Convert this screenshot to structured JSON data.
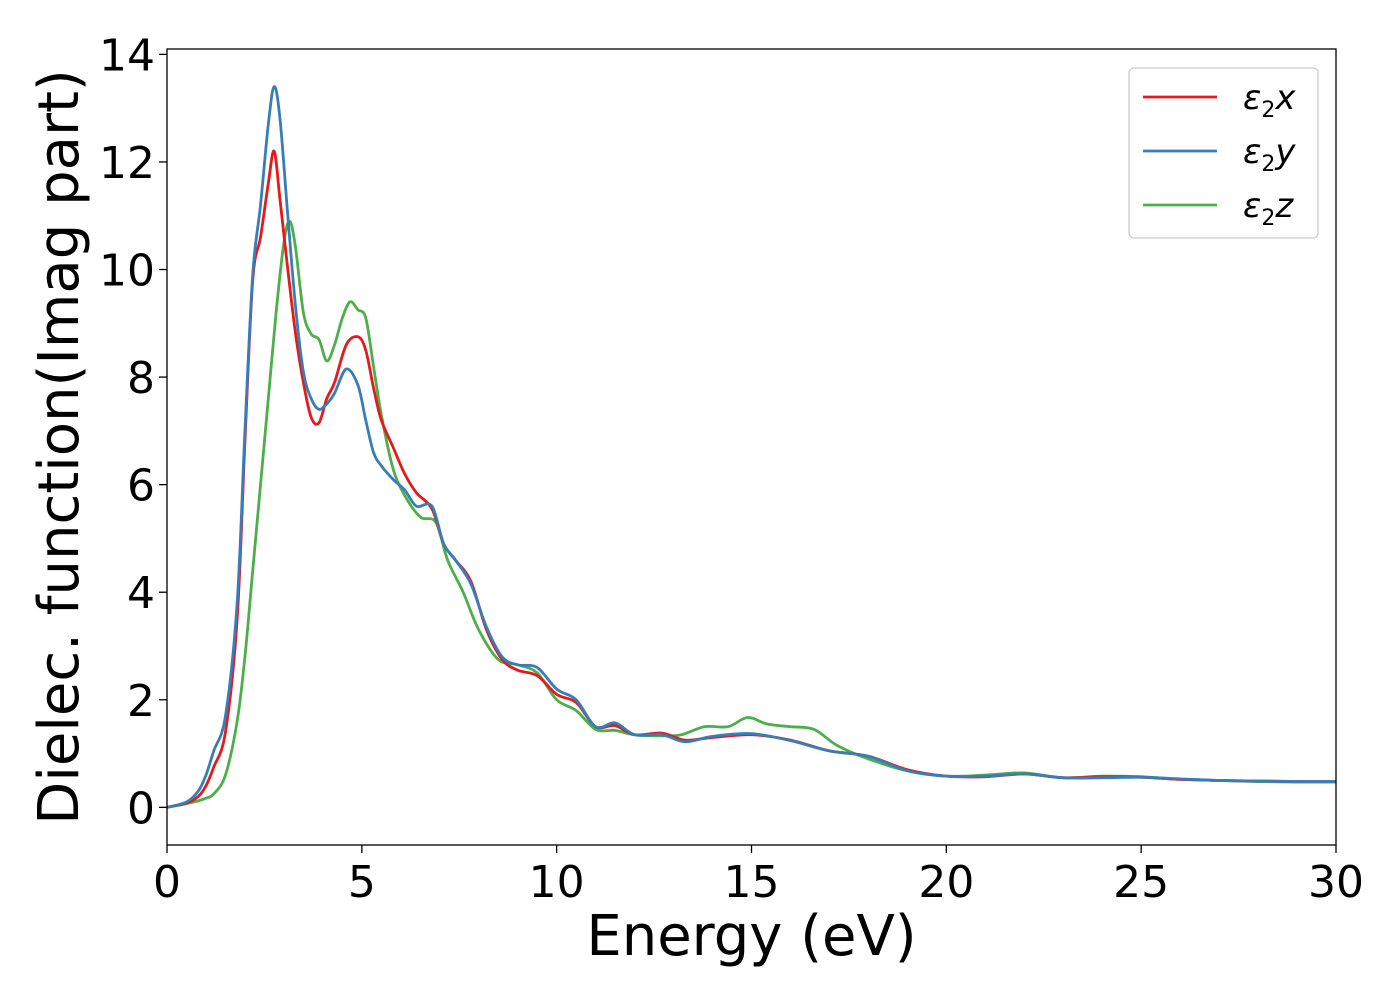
{
  "chart_data": {
    "type": "line",
    "title": "",
    "xlabel": "Energy (eV)",
    "ylabel": "Dielec. function(Imag part)",
    "xlim": [
      0,
      30
    ],
    "ylim": [
      -0.7,
      14.1
    ],
    "xticks": [
      0,
      5,
      10,
      15,
      20,
      25,
      30
    ],
    "yticks": [
      0,
      2,
      4,
      6,
      8,
      10,
      12,
      14
    ],
    "grid": false,
    "legend_position": "top-right",
    "series": [
      {
        "name": "ε2x",
        "legend": {
          "base": "ε",
          "sub": "2",
          "var": "x"
        },
        "color": "#e41a1c",
        "x": [
          0,
          0.5,
          0.8,
          1.0,
          1.2,
          1.5,
          1.8,
          2.0,
          2.2,
          2.4,
          2.6,
          2.75,
          2.9,
          3.1,
          3.3,
          3.5,
          3.7,
          3.9,
          4.1,
          4.3,
          4.6,
          4.9,
          5.1,
          5.3,
          5.5,
          5.8,
          6.1,
          6.4,
          6.8,
          7.1,
          7.4,
          7.8,
          8.2,
          8.6,
          9.0,
          9.5,
          10.0,
          10.5,
          11.0,
          11.5,
          12.0,
          12.7,
          13.3,
          14.0,
          15.0,
          16.0,
          17.0,
          18.0,
          19.0,
          20.0,
          21.0,
          22.0,
          23.0,
          24.0,
          25.0,
          26.0,
          27.0,
          28.0,
          29.0,
          30.0
        ],
        "y": [
          0.0,
          0.08,
          0.2,
          0.4,
          0.75,
          1.4,
          3.5,
          6.8,
          9.8,
          10.6,
          11.6,
          12.2,
          11.3,
          10.0,
          8.8,
          7.9,
          7.25,
          7.15,
          7.6,
          7.9,
          8.6,
          8.75,
          8.5,
          7.8,
          7.2,
          6.7,
          6.2,
          5.85,
          5.55,
          4.9,
          4.6,
          4.2,
          3.3,
          2.75,
          2.55,
          2.45,
          2.1,
          1.95,
          1.5,
          1.52,
          1.35,
          1.38,
          1.25,
          1.3,
          1.35,
          1.25,
          1.05,
          0.95,
          0.7,
          0.58,
          0.57,
          0.62,
          0.55,
          0.57,
          0.56,
          0.52,
          0.5,
          0.49,
          0.48,
          0.48
        ]
      },
      {
        "name": "ε2y",
        "legend": {
          "base": "ε",
          "sub": "2",
          "var": "y"
        },
        "color": "#377eb8",
        "x": [
          0,
          0.5,
          0.8,
          1.0,
          1.2,
          1.5,
          1.8,
          2.0,
          2.2,
          2.4,
          2.6,
          2.75,
          2.9,
          3.1,
          3.3,
          3.5,
          3.7,
          3.9,
          4.1,
          4.3,
          4.6,
          4.9,
          5.1,
          5.3,
          5.5,
          5.8,
          6.1,
          6.4,
          6.8,
          7.1,
          7.4,
          7.8,
          8.2,
          8.6,
          9.0,
          9.5,
          10.0,
          10.5,
          11.0,
          11.5,
          12.0,
          12.7,
          13.3,
          14.0,
          15.0,
          16.0,
          17.0,
          18.0,
          19.0,
          20.0,
          21.0,
          22.0,
          23.0,
          24.0,
          25.0,
          26.0,
          27.0,
          28.0,
          29.0,
          30.0
        ],
        "y": [
          0.0,
          0.1,
          0.3,
          0.6,
          1.05,
          1.7,
          3.8,
          7.0,
          9.9,
          11.2,
          12.7,
          13.4,
          12.8,
          11.0,
          9.3,
          8.1,
          7.6,
          7.4,
          7.5,
          7.7,
          8.15,
          7.85,
          7.2,
          6.6,
          6.35,
          6.1,
          5.9,
          5.6,
          5.6,
          4.9,
          4.6,
          4.15,
          3.35,
          2.8,
          2.65,
          2.6,
          2.2,
          2.0,
          1.5,
          1.57,
          1.35,
          1.35,
          1.22,
          1.32,
          1.37,
          1.24,
          1.05,
          0.95,
          0.68,
          0.58,
          0.58,
          0.62,
          0.55,
          0.55,
          0.56,
          0.53,
          0.5,
          0.49,
          0.48,
          0.48
        ]
      },
      {
        "name": "ε2z",
        "legend": {
          "base": "ε",
          "sub": "2",
          "var": "z"
        },
        "color": "#4daf4a",
        "x": [
          0,
          0.5,
          0.8,
          1.0,
          1.2,
          1.5,
          1.8,
          2.0,
          2.2,
          2.4,
          2.6,
          2.8,
          3.0,
          3.15,
          3.3,
          3.5,
          3.7,
          3.9,
          4.1,
          4.3,
          4.5,
          4.7,
          4.9,
          5.1,
          5.3,
          5.5,
          5.8,
          6.1,
          6.5,
          6.9,
          7.2,
          7.6,
          8.0,
          8.5,
          9.0,
          9.5,
          10.0,
          10.5,
          11.0,
          11.5,
          12.0,
          12.7,
          13.2,
          13.8,
          14.4,
          14.9,
          15.4,
          16.0,
          16.6,
          17.2,
          18.0,
          19.0,
          20.0,
          21.0,
          22.0,
          23.0,
          24.0,
          25.0,
          26.0,
          27.0,
          28.0,
          29.0,
          30.0
        ],
        "y": [
          0.0,
          0.07,
          0.12,
          0.17,
          0.25,
          0.6,
          1.6,
          2.8,
          4.4,
          6.0,
          7.6,
          9.2,
          10.5,
          10.9,
          10.4,
          9.2,
          8.8,
          8.7,
          8.3,
          8.6,
          9.1,
          9.4,
          9.25,
          9.1,
          8.2,
          7.3,
          6.3,
          5.8,
          5.4,
          5.3,
          4.6,
          4.0,
          3.3,
          2.75,
          2.65,
          2.5,
          2.0,
          1.8,
          1.45,
          1.43,
          1.35,
          1.33,
          1.35,
          1.5,
          1.5,
          1.67,
          1.55,
          1.5,
          1.45,
          1.15,
          0.9,
          0.68,
          0.58,
          0.6,
          0.64,
          0.55,
          0.58,
          0.57,
          0.52,
          0.5,
          0.48,
          0.47,
          0.47
        ]
      }
    ]
  }
}
